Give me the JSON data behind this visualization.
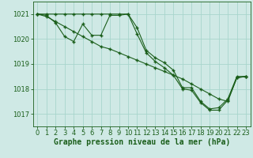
{
  "bg_color": "#cfe9e5",
  "plot_bg_color": "#cfe9e5",
  "grid_color": "#a8d5cc",
  "line_color": "#1a5e1a",
  "marker_color": "#1a5e1a",
  "xlabel": "Graphe pression niveau de la mer (hPa)",
  "xlabel_fontsize": 7,
  "tick_fontsize": 6,
  "ylim": [
    1016.5,
    1021.5
  ],
  "xlim": [
    -0.5,
    23.5
  ],
  "yticks": [
    1017,
    1018,
    1019,
    1020,
    1021
  ],
  "xticks": [
    0,
    1,
    2,
    3,
    4,
    5,
    6,
    7,
    8,
    9,
    10,
    11,
    12,
    13,
    14,
    15,
    16,
    17,
    18,
    19,
    20,
    21,
    22,
    23
  ],
  "lines": [
    {
      "x": [
        0,
        1,
        2,
        3,
        4,
        5,
        6,
        7,
        8,
        9,
        10,
        11,
        12,
        13,
        14,
        15,
        16,
        17,
        18,
        19,
        20,
        21,
        22,
        23
      ],
      "y": [
        1021.0,
        1020.95,
        1020.65,
        1020.1,
        1019.9,
        1020.6,
        1020.15,
        1020.15,
        1020.95,
        1020.95,
        1021.0,
        1020.45,
        1019.55,
        1019.25,
        1019.05,
        1018.75,
        1018.05,
        1018.05,
        1017.5,
        1017.2,
        1017.25,
        1017.6,
        1018.5,
        1018.5
      ]
    },
    {
      "x": [
        0,
        1,
        2,
        3,
        4,
        5,
        6,
        7,
        8,
        9,
        10,
        11,
        12,
        13,
        14,
        15,
        16,
        17,
        18,
        19,
        20,
        21,
        22,
        23
      ],
      "y": [
        1021.0,
        1021.0,
        1021.0,
        1021.0,
        1021.0,
        1021.0,
        1021.0,
        1021.0,
        1021.0,
        1021.0,
        1021.0,
        1020.2,
        1019.45,
        1019.1,
        1018.85,
        1018.55,
        1018.0,
        1017.95,
        1017.45,
        1017.15,
        1017.15,
        1017.55,
        1018.45,
        1018.5
      ]
    },
    {
      "x": [
        0,
        1,
        2,
        3,
        4,
        5,
        6,
        7,
        8,
        9,
        10,
        11,
        12,
        13,
        14,
        15,
        16,
        17,
        18,
        19,
        20,
        21,
        22,
        23
      ],
      "y": [
        1021.0,
        1020.9,
        1020.7,
        1020.5,
        1020.3,
        1020.1,
        1019.9,
        1019.7,
        1019.6,
        1019.45,
        1019.3,
        1019.15,
        1019.0,
        1018.85,
        1018.7,
        1018.55,
        1018.4,
        1018.2,
        1018.0,
        1017.8,
        1017.6,
        1017.5,
        1018.45,
        1018.5
      ]
    }
  ]
}
